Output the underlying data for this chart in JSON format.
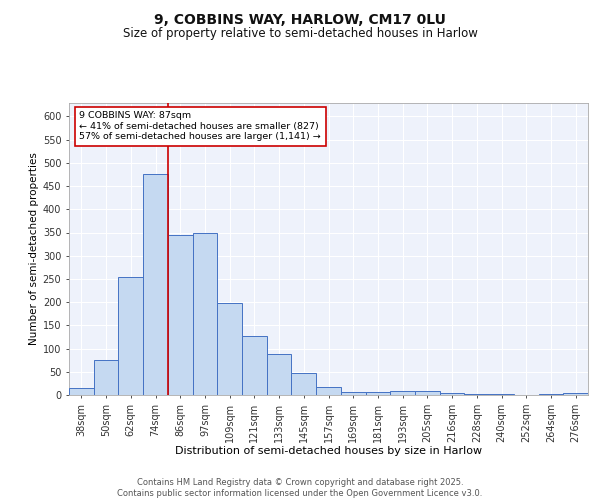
{
  "title1": "9, COBBINS WAY, HARLOW, CM17 0LU",
  "title2": "Size of property relative to semi-detached houses in Harlow",
  "xlabel": "Distribution of semi-detached houses by size in Harlow",
  "ylabel": "Number of semi-detached properties",
  "categories": [
    "38sqm",
    "50sqm",
    "62sqm",
    "74sqm",
    "86sqm",
    "97sqm",
    "109sqm",
    "121sqm",
    "133sqm",
    "145sqm",
    "157sqm",
    "169sqm",
    "181sqm",
    "193sqm",
    "205sqm",
    "216sqm",
    "228sqm",
    "240sqm",
    "252sqm",
    "264sqm",
    "276sqm"
  ],
  "values": [
    15,
    75,
    255,
    475,
    345,
    350,
    198,
    127,
    88,
    47,
    17,
    7,
    7,
    8,
    8,
    5,
    2,
    2,
    1,
    2,
    4
  ],
  "bar_color": "#c5d9f1",
  "bar_edge_color": "#4472c4",
  "annotation_text": "9 COBBINS WAY: 87sqm\n← 41% of semi-detached houses are smaller (827)\n57% of semi-detached houses are larger (1,141) →",
  "annotation_box_color": "#ffffff",
  "annotation_box_edge": "#cc0000",
  "red_line_color": "#cc0000",
  "ylim": [
    0,
    630
  ],
  "yticks": [
    0,
    50,
    100,
    150,
    200,
    250,
    300,
    350,
    400,
    450,
    500,
    550,
    600
  ],
  "background_color": "#eef2fb",
  "grid_color": "#ffffff",
  "footer": "Contains HM Land Registry data © Crown copyright and database right 2025.\nContains public sector information licensed under the Open Government Licence v3.0.",
  "title1_fontsize": 10,
  "title2_fontsize": 8.5,
  "xlabel_fontsize": 8,
  "ylabel_fontsize": 7.5,
  "tick_fontsize": 7,
  "footer_fontsize": 6
}
